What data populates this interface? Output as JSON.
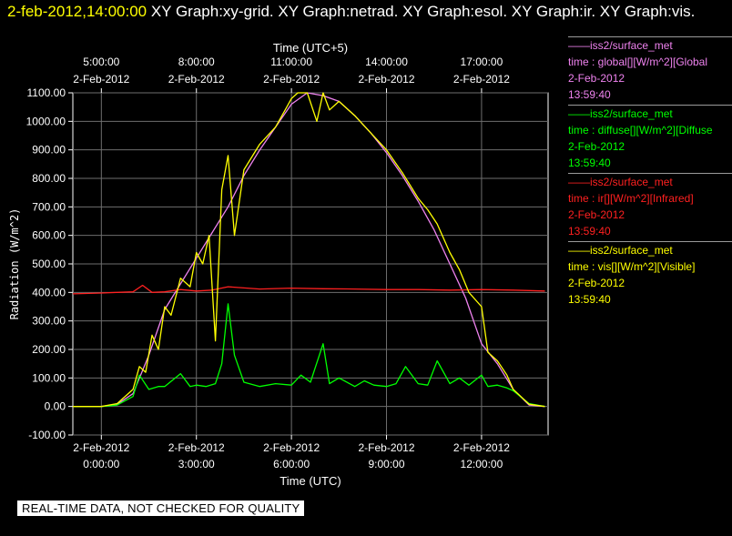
{
  "header": {
    "timestamp": "2-feb-2012,14:00:00",
    "graphs": " XY Graph:xy-grid.  XY Graph:netrad.  XY Graph:esol.  XY Graph:ir.  XY Graph:vis."
  },
  "notice": "REAL-TIME DATA, NOT CHECKED FOR QUALITY",
  "legend": [
    {
      "source": "iss2/surface_met",
      "desc": "time : global[][W/m^2][Global",
      "date": "2-Feb-2012",
      "time": "13:59:40",
      "color": "#ee82ee"
    },
    {
      "source": "iss2/surface_met",
      "desc": "time : diffuse[][W/m^2][Diffuse",
      "date": "2-Feb-2012",
      "time": "13:59:40",
      "color": "#00ff00"
    },
    {
      "source": "iss2/surface_met",
      "desc": "time : ir[][W/m^2][Infrared]",
      "date": "2-Feb-2012",
      "time": "13:59:40",
      "color": "#ff2020"
    },
    {
      "source": "iss2/surface_met",
      "desc": "time : vis[][W/m^2][Visible]",
      "date": "2-Feb-2012",
      "time": "13:59:40",
      "color": "#ffff00"
    }
  ],
  "chart_data": {
    "type": "line",
    "xlabel": "Time (UTC)",
    "x2label": "Time (UTC+5)",
    "ylabel": "Radiation (W/m^2)",
    "ylim": [
      -100,
      1100
    ],
    "xlim_hours_utc": [
      -0.9,
      14.1
    ],
    "grid": true,
    "yticks": [
      "-100.00",
      "0.00",
      "100.00",
      "200.00",
      "300.00",
      "400.00",
      "500.00",
      "600.00",
      "700.00",
      "800.00",
      "900.00",
      "1000.00",
      "1100.00"
    ],
    "xticks_bottom": [
      {
        "date": "2-Feb-2012",
        "time": "0:00:00",
        "hour": 0
      },
      {
        "date": "2-Feb-2012",
        "time": "3:00:00",
        "hour": 3
      },
      {
        "date": "2-Feb-2012",
        "time": "6:00:00",
        "hour": 6
      },
      {
        "date": "2-Feb-2012",
        "time": "9:00:00",
        "hour": 9
      },
      {
        "date": "2-Feb-2012",
        "time": "12:00:00",
        "hour": 12
      }
    ],
    "xticks_top": [
      {
        "date": "2-Feb-2012",
        "time": "5:00:00",
        "hour": 0
      },
      {
        "date": "2-Feb-2012",
        "time": "8:00:00",
        "hour": 3
      },
      {
        "date": "2-Feb-2012",
        "time": "11:00:00",
        "hour": 6
      },
      {
        "date": "2-Feb-2012",
        "time": "14:00:00",
        "hour": 9
      },
      {
        "date": "2-Feb-2012",
        "time": "17:00:00",
        "hour": 12
      }
    ],
    "series": [
      {
        "name": "global",
        "color": "#ee82ee",
        "x": [
          -0.9,
          0,
          0.5,
          1,
          1.5,
          2,
          2.5,
          3,
          3.5,
          4,
          4.5,
          5,
          5.5,
          6,
          6.5,
          7,
          7.5,
          8,
          8.5,
          9,
          9.5,
          10,
          10.5,
          11,
          11.5,
          12,
          12.5,
          13,
          13.5,
          14
        ],
        "y": [
          0,
          0,
          8,
          45,
          180,
          340,
          430,
          520,
          610,
          700,
          810,
          900,
          980,
          1060,
          1100,
          1090,
          1070,
          1020,
          960,
          890,
          810,
          720,
          620,
          500,
          380,
          220,
          150,
          60,
          5,
          0
        ]
      },
      {
        "name": "diffuse",
        "color": "#00ff00",
        "x": [
          -0.9,
          0,
          0.5,
          1,
          1.2,
          1.5,
          1.8,
          2,
          2.5,
          2.8,
          3,
          3.3,
          3.6,
          3.8,
          4.0,
          4.2,
          4.5,
          5,
          5.5,
          6,
          6.3,
          6.6,
          7,
          7.2,
          7.5,
          8,
          8.3,
          8.6,
          9,
          9.3,
          9.6,
          10,
          10.3,
          10.6,
          11,
          11.3,
          11.6,
          12,
          12.2,
          12.5,
          12.8,
          13,
          13.5,
          14
        ],
        "y": [
          0,
          0,
          5,
          35,
          110,
          60,
          70,
          70,
          115,
          70,
          75,
          70,
          80,
          150,
          360,
          180,
          85,
          70,
          80,
          75,
          110,
          85,
          220,
          80,
          100,
          70,
          90,
          75,
          70,
          80,
          140,
          80,
          75,
          160,
          80,
          100,
          75,
          110,
          70,
          75,
          65,
          55,
          10,
          0
        ]
      },
      {
        "name": "ir",
        "color": "#ff2020",
        "x": [
          -0.9,
          0,
          0.5,
          1,
          1.3,
          1.6,
          2,
          2.5,
          3,
          3.5,
          4,
          5,
          6,
          7,
          8,
          9,
          10,
          11,
          12,
          13,
          14
        ],
        "y": [
          395,
          398,
          400,
          402,
          425,
          400,
          402,
          410,
          405,
          408,
          420,
          412,
          415,
          413,
          412,
          410,
          410,
          408,
          410,
          408,
          405
        ]
      },
      {
        "name": "vis",
        "color": "#ffff00",
        "x": [
          -0.9,
          0,
          0.5,
          1,
          1.2,
          1.4,
          1.6,
          1.8,
          2,
          2.2,
          2.5,
          2.8,
          3,
          3.2,
          3.4,
          3.6,
          3.8,
          4,
          4.2,
          4.5,
          5,
          5.5,
          5.8,
          6,
          6.2,
          6.5,
          6.8,
          7,
          7.2,
          7.5,
          8,
          8.5,
          9,
          9.5,
          10,
          10.3,
          10.6,
          11,
          11.3,
          11.6,
          12,
          12.2,
          12.5,
          12.8,
          13,
          13.5,
          14
        ],
        "y": [
          0,
          0,
          10,
          60,
          140,
          120,
          250,
          200,
          350,
          320,
          450,
          420,
          540,
          500,
          600,
          230,
          760,
          880,
          600,
          830,
          920,
          980,
          1040,
          1080,
          1100,
          1100,
          1000,
          1100,
          1040,
          1070,
          1020,
          960,
          900,
          820,
          730,
          690,
          640,
          540,
          480,
          400,
          350,
          190,
          160,
          110,
          60,
          8,
          0
        ]
      }
    ]
  }
}
